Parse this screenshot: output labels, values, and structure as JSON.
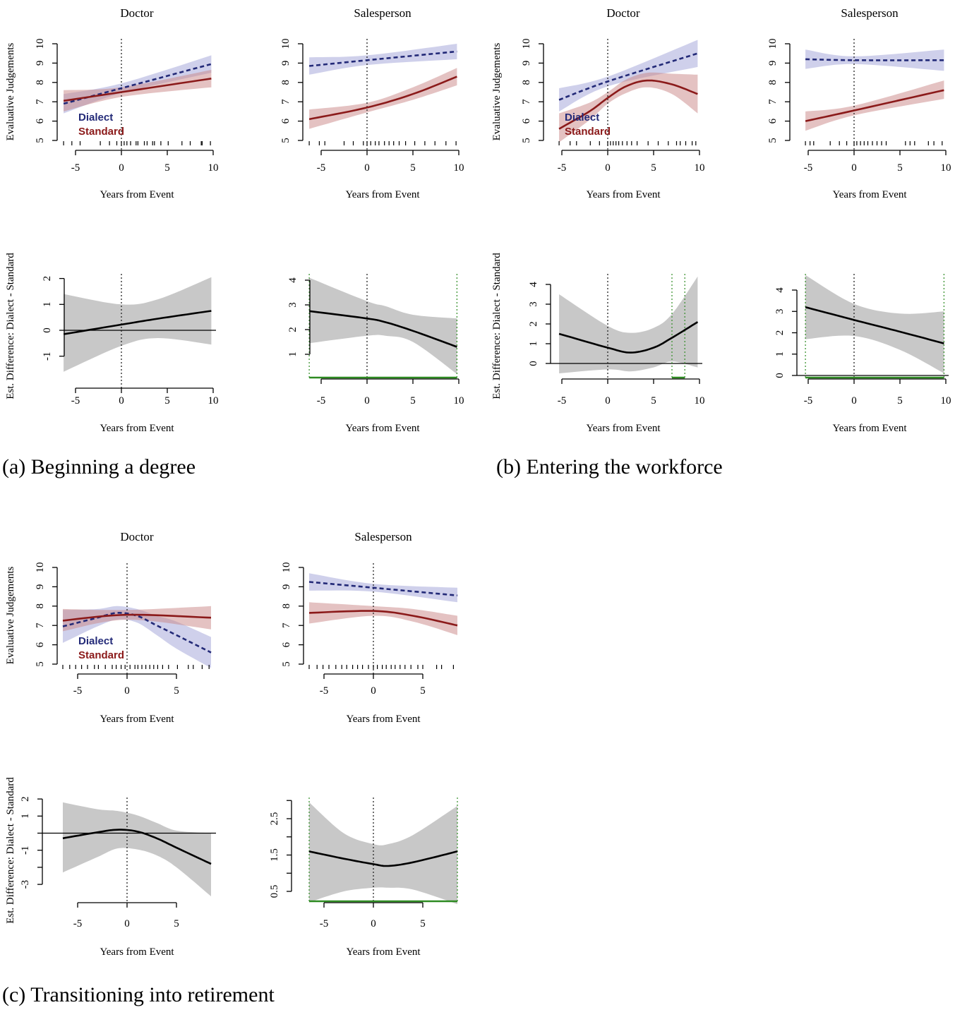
{
  "captions": {
    "a": "(a) Beginning a degree",
    "b": "(b) Entering the workforce",
    "c": "(c) Transitioning into retirement"
  },
  "colors": {
    "dialect_line": "#232a78",
    "dialect_band": "#9fa2d8",
    "standard_line": "#8b1a1a",
    "standard_band": "#c98585",
    "difference_line": "#000000",
    "difference_band": "#c8c8c8",
    "significance": "#2e8b22"
  },
  "chart_data": [
    {
      "group": "a",
      "title": "Doctor",
      "type": "line",
      "xlabel": "Years from Event",
      "ylabel": "Evaluative Judgements",
      "xticks": [
        -5,
        0,
        5,
        10
      ],
      "yticks": [
        5,
        6,
        7,
        8,
        9,
        10
      ],
      "ytick_labels": [
        "5",
        "6",
        "7",
        "8",
        "9",
        "10"
      ],
      "ylim": [
        5,
        10
      ],
      "event_line_x": 0,
      "legend": [
        "Dialect",
        "Standard"
      ],
      "series": [
        {
          "name": "Dialect",
          "style": "dashed",
          "x": [
            -6.3,
            0,
            9.8
          ],
          "y": [
            6.9,
            7.7,
            8.95
          ],
          "lower": [
            6.4,
            7.45,
            8.5
          ],
          "upper": [
            7.4,
            7.95,
            9.4
          ]
        },
        {
          "name": "Standard",
          "style": "solid",
          "x": [
            -6.3,
            0,
            9.8
          ],
          "y": [
            7.05,
            7.5,
            8.2
          ],
          "lower": [
            6.5,
            7.25,
            7.75
          ],
          "upper": [
            7.6,
            7.75,
            8.65
          ]
        }
      ],
      "rug": [
        -6.3,
        -5.4,
        -4.5,
        -2.3,
        -1.3,
        -0.5,
        0,
        0.3,
        0.6,
        1,
        1.6,
        1.8,
        2.5,
        2.8,
        3.4,
        3.6,
        4.3,
        5.1,
        6.6,
        7.5,
        8.7,
        8.8,
        9.7
      ]
    },
    {
      "group": "a",
      "title": "Salesperson",
      "type": "line",
      "xlabel": "Years from Event",
      "ylabel": "",
      "xticks": [
        -5,
        0,
        5,
        10
      ],
      "yticks": [
        5,
        6,
        7,
        8,
        9,
        10
      ],
      "ytick_labels": [
        "5",
        "6",
        "7",
        "8",
        "9",
        "10"
      ],
      "ylim": [
        5,
        10
      ],
      "event_line_x": 0,
      "series": [
        {
          "style": "dashed",
          "x": [
            -6.3,
            0,
            9.8
          ],
          "y": [
            8.85,
            9.15,
            9.6
          ],
          "lower": [
            8.4,
            8.9,
            9.2
          ],
          "upper": [
            9.3,
            9.4,
            10.0
          ]
        },
        {
          "style": "solid",
          "x": [
            -6.3,
            0,
            5,
            9.8
          ],
          "y": [
            6.1,
            6.7,
            7.4,
            8.3
          ],
          "lower": [
            5.6,
            6.45,
            7.1,
            7.85
          ],
          "upper": [
            6.6,
            6.95,
            7.75,
            8.75
          ]
        }
      ],
      "rug": [
        -6.3,
        -5.2,
        -4.6,
        -2.5,
        -1.5,
        -0.4,
        0,
        0.4,
        0.9,
        1.3,
        1.9,
        2.4,
        2.9,
        3.5,
        4.2,
        5.2,
        6.3,
        7.4,
        8.6,
        9.7
      ]
    },
    {
      "group": "b",
      "title": "Doctor",
      "type": "line",
      "xlabel": "Years from Event",
      "ylabel": "Evaluative Judgements",
      "xticks": [
        -5,
        0,
        5,
        10
      ],
      "yticks": [
        5,
        6,
        7,
        8,
        9,
        10
      ],
      "ytick_labels": [
        "5",
        "6",
        "7",
        "8",
        "9",
        "10"
      ],
      "ylim": [
        5,
        10
      ],
      "event_line_x": 0,
      "legend": [
        "Dialect",
        "Standard"
      ],
      "series": [
        {
          "name": "Dialect",
          "style": "dashed",
          "x": [
            -5.3,
            0,
            9.8
          ],
          "y": [
            7.1,
            8.05,
            9.5
          ],
          "lower": [
            6.5,
            7.8,
            8.8
          ],
          "upper": [
            7.7,
            8.3,
            10.2
          ]
        },
        {
          "name": "Standard",
          "style": "solid",
          "x": [
            -5.3,
            -2,
            0,
            2,
            4.3,
            7,
            9.8
          ],
          "y": [
            5.6,
            6.5,
            7.2,
            7.8,
            8.1,
            7.9,
            7.4
          ],
          "lower": [
            4.9,
            6.05,
            6.9,
            7.45,
            7.75,
            7.4,
            6.4
          ],
          "upper": [
            6.4,
            6.95,
            7.5,
            8.15,
            8.5,
            8.45,
            8.4
          ]
        }
      ],
      "rug": [
        -5.3,
        -4.1,
        -3.4,
        -1.9,
        -0.9,
        0,
        0.3,
        0.6,
        0.9,
        1.2,
        1.6,
        2.1,
        2.6,
        3.2,
        4.4,
        5.5,
        6.6,
        7.5,
        7.9,
        8.5,
        9.2,
        9.6
      ]
    },
    {
      "group": "b",
      "title": "Salesperson",
      "type": "line",
      "xlabel": "Years from Event",
      "ylabel": "",
      "xticks": [
        -5,
        0,
        5,
        10
      ],
      "yticks": [
        5,
        6,
        7,
        8,
        9,
        10
      ],
      "ytick_labels": [
        "5",
        "6",
        "7",
        "8",
        "9",
        "10"
      ],
      "ylim": [
        5,
        10
      ],
      "event_line_x": 0,
      "series": [
        {
          "style": "dashed",
          "x": [
            -5.3,
            0,
            9.8
          ],
          "y": [
            9.2,
            9.15,
            9.15
          ],
          "lower": [
            8.7,
            8.95,
            8.6
          ],
          "upper": [
            9.7,
            9.35,
            9.7
          ]
        },
        {
          "style": "solid",
          "x": [
            -5.3,
            0,
            9.8
          ],
          "y": [
            6.0,
            6.55,
            7.6
          ],
          "lower": [
            5.5,
            6.3,
            7.15
          ],
          "upper": [
            6.5,
            6.8,
            8.1
          ]
        }
      ],
      "rug": [
        -5.3,
        -4.8,
        -4.4,
        -2.6,
        -1.6,
        -0.8,
        0,
        0.3,
        0.7,
        1.1,
        1.5,
        2.0,
        2.5,
        3.0,
        3.5,
        5.6,
        6.1,
        6.6,
        8.1,
        8.7,
        9.6
      ]
    },
    {
      "group": "a",
      "title": "",
      "type": "line",
      "xlabel": "Years from Event",
      "ylabel": "Est. Difference: Dialect - Standard",
      "xticks": [
        -5,
        0,
        5,
        10
      ],
      "yticks": [
        -1,
        0,
        1,
        2
      ],
      "ytick_labels": [
        "-1",
        "0",
        "1",
        "2"
      ],
      "event_line_x": 0,
      "reference_line_y": 0,
      "series": [
        {
          "style": "solid",
          "x": [
            -6.3,
            0,
            4,
            9.8
          ],
          "y": [
            -0.15,
            0.22,
            0.45,
            0.75
          ],
          "lower": [
            -1.6,
            -0.6,
            -0.3,
            -0.55
          ],
          "upper": [
            1.4,
            1.0,
            1.2,
            2.05
          ]
        }
      ]
    },
    {
      "group": "a",
      "title": "",
      "type": "line",
      "xlabel": "Years from Event",
      "ylabel": "",
      "xticks": [
        -5,
        0,
        5,
        10
      ],
      "yticks": [
        1,
        2,
        3,
        4
      ],
      "ytick_labels": [
        "1",
        "2",
        "3",
        "4"
      ],
      "event_line_x": 0,
      "significant_region": [
        -6.3,
        9.8
      ],
      "series": [
        {
          "style": "solid",
          "x": [
            -6.3,
            0,
            2,
            5,
            9.8
          ],
          "y": [
            2.75,
            2.45,
            2.3,
            1.95,
            1.3
          ],
          "lower": [
            1.45,
            1.75,
            1.75,
            1.5,
            0.2
          ],
          "upper": [
            4.1,
            3.15,
            2.95,
            2.6,
            2.45
          ]
        }
      ]
    },
    {
      "group": "b",
      "title": "",
      "type": "line",
      "xlabel": "Years from Event",
      "ylabel": "Est. Difference: Dialect - Standard",
      "xticks": [
        -5,
        0,
        5,
        10
      ],
      "yticks": [
        0,
        1,
        2,
        3,
        4
      ],
      "ytick_labels": [
        "0",
        "1",
        "2",
        "3",
        "4"
      ],
      "event_line_x": 0,
      "reference_line_y": 0,
      "significant_region": [
        7.0,
        8.4
      ],
      "series": [
        {
          "style": "solid",
          "x": [
            -5.3,
            0,
            2.5,
            5,
            7,
            9.8
          ],
          "y": [
            1.5,
            0.8,
            0.55,
            0.8,
            1.3,
            2.1
          ],
          "lower": [
            -0.5,
            -0.3,
            -0.4,
            -0.2,
            0.1,
            -0.2
          ],
          "upper": [
            3.5,
            1.9,
            1.55,
            1.8,
            2.5,
            4.4
          ]
        }
      ]
    },
    {
      "group": "b",
      "title": "",
      "type": "line",
      "xlabel": "Years from Event",
      "ylabel": "",
      "xticks": [
        -5,
        0,
        5,
        10
      ],
      "yticks": [
        0,
        1,
        2,
        3,
        4
      ],
      "ytick_labels": [
        "0",
        "1",
        "2",
        "3",
        "4"
      ],
      "event_line_x": 0,
      "reference_line_y": 0,
      "significant_region": [
        -5.3,
        9.8
      ],
      "series": [
        {
          "style": "solid",
          "x": [
            -5.3,
            0,
            5,
            9.8
          ],
          "y": [
            3.2,
            2.6,
            2.05,
            1.5
          ],
          "lower": [
            1.7,
            1.85,
            1.2,
            0.1
          ],
          "upper": [
            4.7,
            3.35,
            2.9,
            3.0
          ]
        }
      ]
    },
    {
      "group": "c",
      "title": "Doctor",
      "type": "line",
      "xlabel": "Years from Event",
      "ylabel": "Evaluative Judgements",
      "xticks": [
        -5,
        0,
        5
      ],
      "yticks": [
        5,
        6,
        7,
        8,
        9,
        10
      ],
      "ytick_labels": [
        "5",
        "6",
        "7",
        "8",
        "9",
        "10"
      ],
      "ylim": [
        5,
        10
      ],
      "event_line_x": 0,
      "legend": [
        "Dialect",
        "Standard"
      ],
      "series": [
        {
          "name": "Dialect",
          "style": "dashed",
          "x": [
            -6.5,
            -3,
            -1,
            1,
            3,
            5,
            8.5
          ],
          "y": [
            6.95,
            7.4,
            7.65,
            7.5,
            7.0,
            6.5,
            5.6
          ],
          "lower": [
            6.1,
            6.95,
            7.3,
            7.15,
            6.5,
            5.8,
            4.8
          ],
          "upper": [
            7.8,
            7.85,
            8.0,
            7.85,
            7.5,
            7.2,
            6.4
          ]
        },
        {
          "name": "Standard",
          "style": "solid",
          "x": [
            -6.5,
            0,
            8.5
          ],
          "y": [
            7.25,
            7.55,
            7.4
          ],
          "lower": [
            6.7,
            7.3,
            6.8
          ],
          "upper": [
            7.85,
            7.8,
            8.0
          ]
        }
      ],
      "rug": [
        -6.5,
        -5.8,
        -5.2,
        -4.6,
        -4,
        -3.3,
        -2.9,
        -2.2,
        -1.5,
        -1.1,
        -0.6,
        -0.2,
        0.3,
        0.8,
        1.1,
        1.5,
        1.9,
        2.3,
        2.7,
        3.1,
        3.6,
        4.2,
        5.1,
        6.2,
        6.7,
        7.6,
        8.3
      ]
    },
    {
      "group": "c",
      "title": "Salesperson",
      "type": "line",
      "xlabel": "Years from Event",
      "ylabel": "",
      "xticks": [
        -5,
        0,
        5
      ],
      "yticks": [
        5,
        6,
        7,
        8,
        9,
        10
      ],
      "ytick_labels": [
        "5",
        "6",
        "7",
        "8",
        "9",
        "10"
      ],
      "ylim": [
        5,
        10
      ],
      "event_line_x": 0,
      "series": [
        {
          "style": "dashed",
          "x": [
            -6.5,
            0,
            8.5
          ],
          "y": [
            9.25,
            8.95,
            8.55
          ],
          "lower": [
            8.8,
            8.75,
            8.2
          ],
          "upper": [
            9.7,
            9.15,
            8.95
          ]
        },
        {
          "style": "solid",
          "x": [
            -6.5,
            0,
            4,
            8.5
          ],
          "y": [
            7.65,
            7.75,
            7.5,
            7.0
          ],
          "lower": [
            7.1,
            7.5,
            7.2,
            6.5
          ],
          "upper": [
            8.2,
            8.0,
            7.85,
            7.5
          ]
        }
      ],
      "rug": [
        -6.5,
        -5.7,
        -5.1,
        -4.5,
        -3.8,
        -3.2,
        -2.7,
        -2.1,
        -1.6,
        -1.1,
        -0.5,
        0,
        0.4,
        0.9,
        1.3,
        1.8,
        2.2,
        2.7,
        3.2,
        3.8,
        4.5,
        5.0,
        6.4,
        6.9,
        8.1
      ]
    },
    {
      "group": "c",
      "title": "",
      "type": "line",
      "xlabel": "Years from Event",
      "ylabel": "Est. Difference: Dialect - Standard",
      "xticks": [
        -5,
        0,
        5
      ],
      "yticks": [
        -3,
        -2,
        -1,
        0,
        1,
        2
      ],
      "ytick_labels": [
        "-3",
        "",
        "-1",
        "",
        "1",
        "2"
      ],
      "event_line_x": 0,
      "reference_line_y": 0,
      "series": [
        {
          "style": "solid",
          "x": [
            -6.5,
            -3,
            -1,
            1,
            3,
            5,
            8.5
          ],
          "y": [
            -0.3,
            0.05,
            0.2,
            0.1,
            -0.3,
            -0.85,
            -1.8
          ],
          "lower": [
            -2.3,
            -1.4,
            -0.9,
            -0.95,
            -1.3,
            -2.0,
            -3.7
          ],
          "upper": [
            1.8,
            1.4,
            1.3,
            1.05,
            0.6,
            0.15,
            0.0
          ]
        }
      ]
    },
    {
      "group": "c",
      "title": "",
      "type": "line",
      "xlabel": "Years from Event",
      "ylabel": "",
      "xticks": [
        -5,
        0,
        5
      ],
      "yticks": [
        0.5,
        1,
        1.5,
        2,
        2.5,
        3
      ],
      "ytick_labels": [
        "0.5",
        "",
        "1.5",
        "",
        "2.5",
        ""
      ],
      "event_line_x": 0,
      "significant_region": [
        -6.5,
        8.5
      ],
      "series": [
        {
          "style": "solid",
          "x": [
            -6.5,
            -3,
            0,
            1.5,
            4,
            8.5
          ],
          "y": [
            1.6,
            1.4,
            1.25,
            1.2,
            1.3,
            1.6
          ],
          "lower": [
            0.2,
            0.5,
            0.6,
            0.6,
            0.55,
            0.15
          ],
          "upper": [
            2.95,
            2.1,
            1.8,
            1.8,
            2.05,
            2.85
          ]
        }
      ]
    }
  ]
}
